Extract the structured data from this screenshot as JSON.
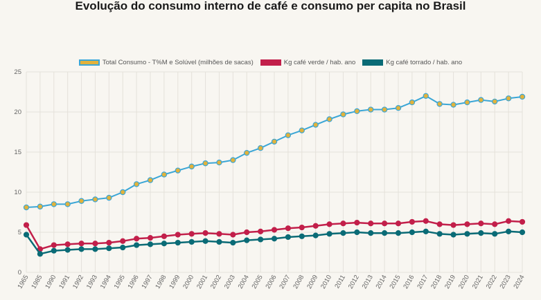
{
  "chart_data": {
    "type": "line",
    "title": "Evolução do consumo interno de café e consumo per capita no Brasil",
    "xlabel": "",
    "ylabel": "",
    "ylim": [
      0,
      25
    ],
    "yticks": [
      "0",
      "5",
      "10",
      "15",
      "20",
      "25"
    ],
    "grid": true,
    "legend_position": "top",
    "categories": [
      "1965",
      "1985",
      "1990",
      "1991",
      "1992",
      "1993",
      "1994",
      "1995",
      "1996",
      "1997",
      "1998",
      "1999",
      "2000",
      "2001",
      "2002",
      "2003",
      "2004",
      "2005",
      "2006",
      "2007",
      "2008",
      "2009",
      "2010",
      "2011",
      "2012",
      "2013",
      "2014",
      "2015",
      "2016",
      "2017",
      "2018",
      "2019",
      "2020",
      "2021",
      "2022",
      "2023",
      "2024"
    ],
    "series": [
      {
        "name": "Total Consumo - T%M e Solúvel (milhões de sacas)",
        "color": "#3aa6d6",
        "point_color": "#e2b23c",
        "values": [
          8.1,
          8.2,
          8.5,
          8.5,
          8.9,
          9.1,
          9.3,
          10.0,
          11.0,
          11.5,
          12.2,
          12.7,
          13.2,
          13.6,
          13.7,
          14.0,
          14.9,
          15.5,
          16.3,
          17.1,
          17.7,
          18.4,
          19.1,
          19.7,
          20.1,
          20.3,
          20.3,
          20.5,
          21.2,
          22.0,
          21.0,
          20.9,
          21.2,
          21.5,
          21.3,
          21.7,
          21.9
        ]
      },
      {
        "name": "Kg café verde / hab. ano",
        "color": "#c21f4a",
        "point_color": "#c21f4a",
        "values": [
          5.9,
          2.9,
          3.4,
          3.5,
          3.6,
          3.6,
          3.7,
          3.9,
          4.2,
          4.3,
          4.5,
          4.7,
          4.8,
          4.9,
          4.8,
          4.7,
          5.0,
          5.1,
          5.3,
          5.5,
          5.6,
          5.8,
          6.0,
          6.1,
          6.2,
          6.1,
          6.1,
          6.1,
          6.3,
          6.4,
          6.0,
          5.9,
          6.0,
          6.1,
          6.0,
          6.4,
          6.3
        ]
      },
      {
        "name": "Kg café torrado / hab. ano",
        "color": "#0a6b76",
        "point_color": "#0a6b76",
        "values": [
          4.7,
          2.3,
          2.7,
          2.8,
          2.9,
          2.9,
          3.0,
          3.1,
          3.4,
          3.5,
          3.6,
          3.7,
          3.8,
          3.9,
          3.8,
          3.7,
          4.0,
          4.1,
          4.2,
          4.4,
          4.5,
          4.6,
          4.8,
          4.9,
          5.0,
          4.9,
          4.9,
          4.9,
          5.0,
          5.1,
          4.8,
          4.7,
          4.8,
          4.9,
          4.8,
          5.1,
          5.0
        ]
      }
    ]
  }
}
